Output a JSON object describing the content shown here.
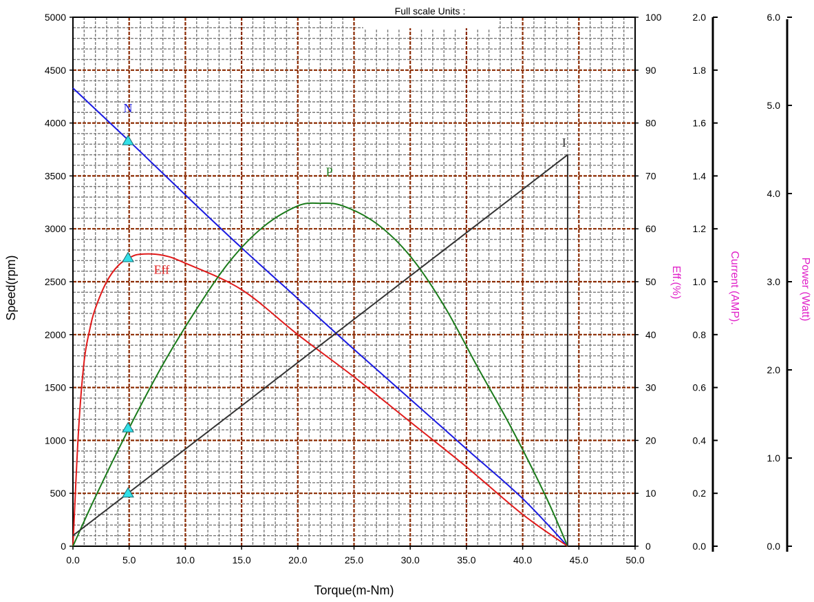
{
  "chart_data": {
    "type": "line",
    "header": "Full scale Units :",
    "xlabel": "Torque(m-Nm)",
    "xlim": [
      0,
      50
    ],
    "x_ticks": [
      "0.0",
      "5.0",
      "10.0",
      "15.0",
      "20.0",
      "25.0",
      "30.0",
      "35.0",
      "40.0",
      "45.0",
      "50.0"
    ],
    "axes": {
      "speed": {
        "label": "Speed(rpm)",
        "range": [
          0,
          5000
        ],
        "ticks": [
          "0",
          "500",
          "1000",
          "1500",
          "2000",
          "2500",
          "3000",
          "3500",
          "4000",
          "4500",
          "5000"
        ]
      },
      "eff": {
        "label": "Eff.(%)",
        "range": [
          0,
          100
        ],
        "ticks": [
          "0",
          "10",
          "20",
          "30",
          "40",
          "50",
          "60",
          "70",
          "80",
          "90",
          "100"
        ]
      },
      "current": {
        "label": "Current (AMP).",
        "range": [
          0,
          2.0
        ],
        "ticks": [
          "0.0",
          "0.2",
          "0.4",
          "0.6",
          "0.8",
          "1.0",
          "1.2",
          "1.4",
          "1.6",
          "1.8",
          "2.0"
        ]
      },
      "power": {
        "label": "Power (Watt)",
        "range": [
          0,
          6.0
        ],
        "ticks": [
          "0.0",
          "1.0",
          "2.0",
          "3.0",
          "4.0",
          "5.0",
          "6.0"
        ]
      }
    },
    "series": [
      {
        "name": "N",
        "axis": "speed",
        "color": "#1a1ae0",
        "x": [
          0,
          5,
          10,
          15,
          20,
          25,
          30,
          35,
          40,
          44
        ],
        "y": [
          4330,
          3830,
          3320,
          2820,
          2340,
          1860,
          1390,
          920,
          450,
          0
        ]
      },
      {
        "name": "Eff",
        "axis": "eff",
        "color": "#e01a1a",
        "x": [
          0,
          0.5,
          1,
          1.5,
          2,
          3,
          4,
          5,
          6,
          8,
          10,
          15,
          20,
          25,
          30,
          35,
          40,
          44
        ],
        "y": [
          0,
          22,
          35,
          41,
          45,
          50,
          53,
          54.5,
          55.2,
          55,
          53.5,
          48.5,
          40,
          32,
          23.5,
          15,
          6,
          0
        ]
      },
      {
        "name": "P",
        "axis": "power",
        "color": "#1a7a1a",
        "x": [
          0,
          2,
          5,
          8,
          11,
          14,
          17,
          20,
          22,
          24,
          27,
          30,
          33,
          36,
          39,
          42,
          44
        ],
        "y": [
          0,
          0.56,
          1.34,
          2.06,
          2.69,
          3.24,
          3.63,
          3.86,
          3.89,
          3.86,
          3.66,
          3.29,
          2.73,
          2.03,
          1.34,
          0.58,
          0
        ]
      },
      {
        "name": "I",
        "axis": "current",
        "color": "#333333",
        "x": [
          0,
          44
        ],
        "y": [
          0.04,
          1.48
        ]
      }
    ],
    "markers": {
      "color": "#33e0e8",
      "points": [
        {
          "axis": "speed",
          "x": 4.9,
          "y": 3830
        },
        {
          "axis": "eff",
          "x": 4.9,
          "y": 54.5
        },
        {
          "axis": "power",
          "x": 4.9,
          "y": 1.34
        },
        {
          "axis": "current",
          "x": 4.9,
          "y": 0.2
        }
      ]
    },
    "grid": true,
    "major_grid_color": "#8b2a00",
    "minor_grid_color": "#7a7a7a",
    "curve_label_positions": [
      {
        "series": "N",
        "x": 4.5,
        "y_axis": "speed",
        "y": 4100
      },
      {
        "series": "P",
        "x": 22.5,
        "y_axis": "power",
        "y": 4.2
      },
      {
        "series": "I",
        "x": 43.5,
        "y_axis": "current",
        "y": 1.51
      },
      {
        "series": "Eff",
        "x": 7.2,
        "y_axis": "eff",
        "y": 51.5
      }
    ]
  }
}
